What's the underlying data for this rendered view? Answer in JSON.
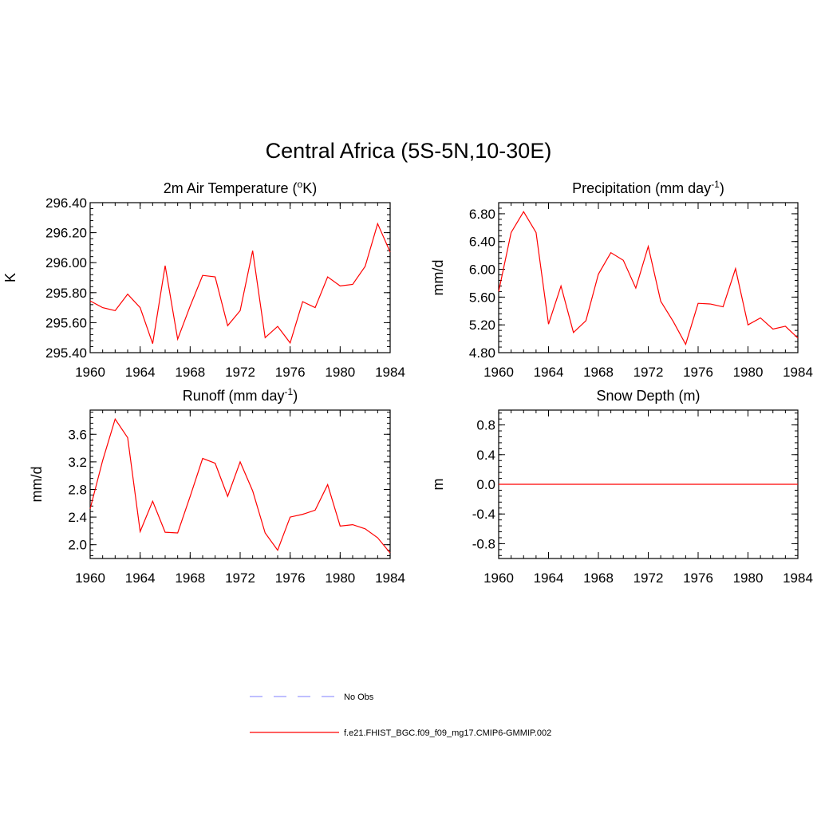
{
  "title": "Central Africa (5S-5N,10-30E)",
  "colors": {
    "model": "#ff0000",
    "obs": "#9999ff",
    "axis": "#000000"
  },
  "chart_data": [
    {
      "type": "line",
      "id": "tas",
      "title_main": "2m Air Temperature (",
      "title_sup": "o",
      "title_tail": "K)",
      "ylabel": "K",
      "xlim": [
        1960,
        1984
      ],
      "ylim": [
        295.4,
        296.4
      ],
      "xticks": [
        1960,
        1964,
        1968,
        1972,
        1976,
        1980,
        1984
      ],
      "yticks": [
        "295.40",
        "295.60",
        "295.80",
        "296.00",
        "296.20",
        "296.40"
      ],
      "x": [
        1960,
        1961,
        1962,
        1963,
        1964,
        1965,
        1966,
        1967,
        1968,
        1969,
        1970,
        1971,
        1972,
        1973,
        1974,
        1975,
        1976,
        1977,
        1978,
        1979,
        1980,
        1981,
        1982,
        1983,
        1984
      ],
      "series": [
        {
          "name": "f.e21.FHIST_BGC.f09_f09_mg17.CMIP6-GMMIP.002",
          "values": [
            295.745,
            295.7,
            295.68,
            295.79,
            295.7,
            295.46,
            295.98,
            295.49,
            295.71,
            295.915,
            295.905,
            295.58,
            295.68,
            296.08,
            295.5,
            295.575,
            295.465,
            295.74,
            295.7,
            295.905,
            295.845,
            295.855,
            295.975,
            296.26,
            296.07
          ]
        }
      ]
    },
    {
      "type": "line",
      "id": "precip",
      "title_main": "Precipitation (mm day",
      "title_sup": "-1",
      "title_tail": ")",
      "ylabel": "mm/d",
      "xlim": [
        1960,
        1984
      ],
      "ylim": [
        4.8,
        6.96
      ],
      "xticks": [
        1960,
        1964,
        1968,
        1972,
        1976,
        1980,
        1984
      ],
      "yticks": [
        "4.80",
        "5.20",
        "5.60",
        "6.00",
        "6.40",
        "6.80"
      ],
      "x": [
        1960,
        1961,
        1962,
        1963,
        1964,
        1965,
        1966,
        1967,
        1968,
        1969,
        1970,
        1971,
        1972,
        1973,
        1974,
        1975,
        1976,
        1977,
        1978,
        1979,
        1980,
        1981,
        1982,
        1983,
        1984
      ],
      "series": [
        {
          "name": "f.e21.FHIST_BGC.f09_f09_mg17.CMIP6-GMMIP.002",
          "values": [
            5.68,
            6.53,
            6.83,
            6.53,
            5.21,
            5.76,
            5.09,
            5.26,
            5.93,
            6.24,
            6.13,
            5.73,
            6.33,
            5.54,
            5.25,
            4.92,
            5.51,
            5.5,
            5.46,
            6.01,
            5.2,
            5.3,
            5.14,
            5.18,
            5.01
          ]
        }
      ]
    },
    {
      "type": "line",
      "id": "runoff",
      "title_main": "Runoff (mm day",
      "title_sup": "-1",
      "title_tail": ")",
      "ylabel": "mm/d",
      "xlim": [
        1960,
        1984
      ],
      "ylim": [
        1.8,
        3.95
      ],
      "xticks": [
        1960,
        1964,
        1968,
        1972,
        1976,
        1980,
        1984
      ],
      "yticks": [
        "2.0",
        "2.4",
        "2.8",
        "3.2",
        "3.6"
      ],
      "x": [
        1960,
        1961,
        1962,
        1963,
        1964,
        1965,
        1966,
        1967,
        1968,
        1969,
        1970,
        1971,
        1972,
        1973,
        1974,
        1975,
        1976,
        1977,
        1978,
        1979,
        1980,
        1981,
        1982,
        1983,
        1984
      ],
      "series": [
        {
          "name": "f.e21.FHIST_BGC.f09_f09_mg17.CMIP6-GMMIP.002",
          "values": [
            2.52,
            3.22,
            3.82,
            3.55,
            2.19,
            2.63,
            2.18,
            2.17,
            2.7,
            3.25,
            3.18,
            2.7,
            3.2,
            2.78,
            2.17,
            1.92,
            2.4,
            2.44,
            2.5,
            2.87,
            2.27,
            2.29,
            2.23,
            2.1,
            1.88
          ]
        }
      ]
    },
    {
      "type": "line",
      "id": "snow",
      "title_main": "Snow Depth (m)",
      "title_sup": "",
      "title_tail": "",
      "ylabel": "m",
      "xlim": [
        1960,
        1984
      ],
      "ylim": [
        -1.0,
        1.0
      ],
      "xticks": [
        1960,
        1964,
        1968,
        1972,
        1976,
        1980,
        1984
      ],
      "yticks": [
        "-0.8",
        "-0.4",
        "0.0",
        "0.4",
        "0.8"
      ],
      "x": [
        1960,
        1961,
        1962,
        1963,
        1964,
        1965,
        1966,
        1967,
        1968,
        1969,
        1970,
        1971,
        1972,
        1973,
        1974,
        1975,
        1976,
        1977,
        1978,
        1979,
        1980,
        1981,
        1982,
        1983,
        1984
      ],
      "series": [
        {
          "name": "f.e21.FHIST_BGC.f09_f09_mg17.CMIP6-GMMIP.002",
          "values": [
            0,
            0,
            0,
            0,
            0,
            0,
            0,
            0,
            0,
            0,
            0,
            0,
            0,
            0,
            0,
            0,
            0,
            0,
            0,
            0,
            0,
            0,
            0,
            0,
            0
          ]
        }
      ]
    }
  ],
  "legend": [
    {
      "label": "No Obs",
      "style": "dashed"
    },
    {
      "label": "f.e21.FHIST_BGC.f09_f09_mg17.CMIP6-GMMIP.002",
      "style": "solid"
    }
  ]
}
